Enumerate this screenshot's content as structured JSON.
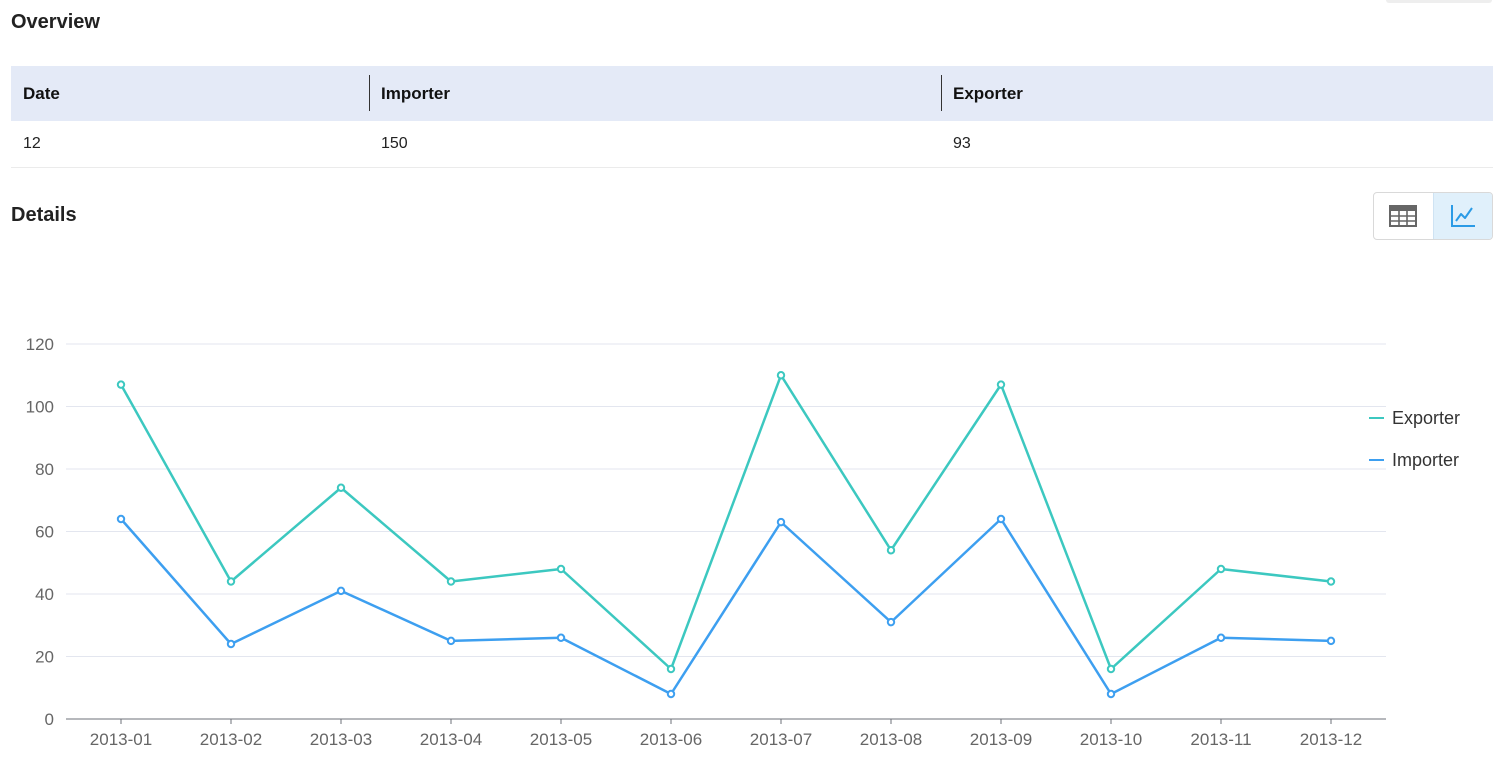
{
  "overview": {
    "title": "Overview",
    "headers": [
      "Date",
      "Importer",
      "Exporter"
    ],
    "row": [
      "12",
      "150",
      "93"
    ]
  },
  "details": {
    "title": "Details",
    "toggle": {
      "table_icon": "table-icon",
      "chart_icon": "line-chart-icon",
      "active": "chart"
    }
  },
  "colors": {
    "exporter": "#3cc8c0",
    "importer": "#3d9ff0",
    "header_bg": "#e4eaf7",
    "toggle_active_bg": "#e0f0fb"
  },
  "chart_data": {
    "type": "line",
    "categories": [
      "2013-01",
      "2013-02",
      "2013-03",
      "2013-04",
      "2013-05",
      "2013-06",
      "2013-07",
      "2013-08",
      "2013-09",
      "2013-10",
      "2013-11",
      "2013-12"
    ],
    "series": [
      {
        "name": "Exporter",
        "color": "#3cc8c0",
        "values": [
          107,
          44,
          74,
          44,
          48,
          16,
          110,
          54,
          107,
          16,
          48,
          44
        ]
      },
      {
        "name": "Importer",
        "color": "#3d9ff0",
        "values": [
          64,
          24,
          41,
          25,
          26,
          8,
          63,
          31,
          64,
          8,
          26,
          25
        ]
      }
    ],
    "ylim": [
      0,
      120
    ],
    "yticks": [
      0,
      20,
      40,
      60,
      80,
      100,
      120
    ],
    "grid": true,
    "legend": "right"
  }
}
